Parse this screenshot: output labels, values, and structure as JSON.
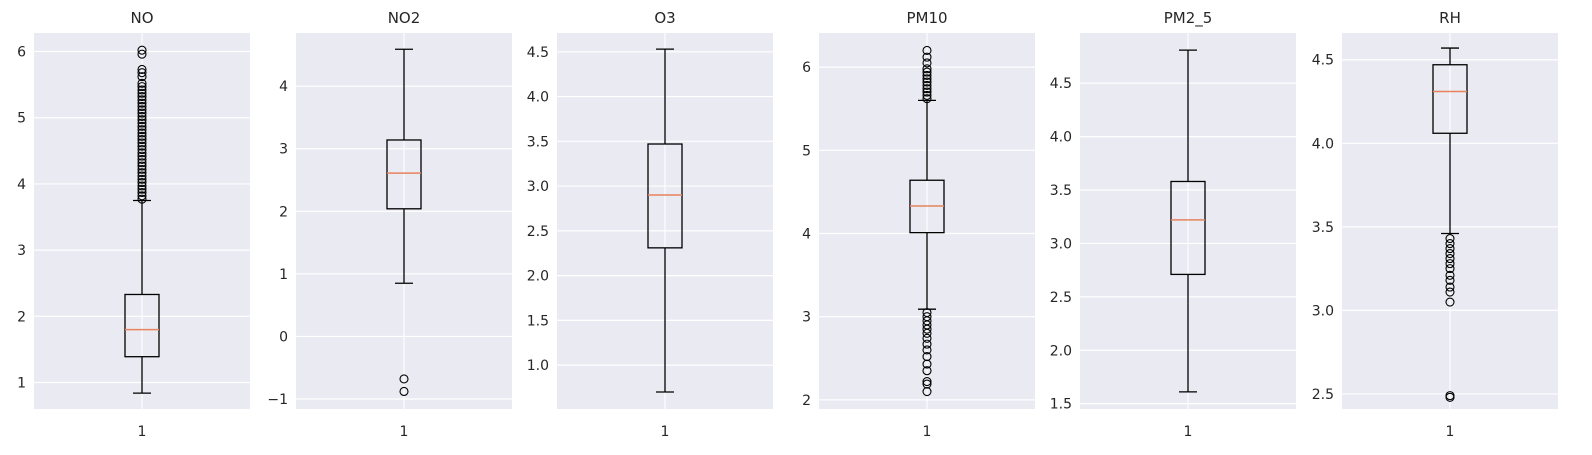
{
  "chart_data": [
    {
      "type": "box",
      "title": "NO",
      "categories": [
        "1"
      ],
      "ylim": [
        0.6,
        6.28
      ],
      "yticks": [
        1,
        2,
        3,
        4,
        5,
        6
      ],
      "box": {
        "whisker_low": 0.84,
        "q1": 1.39,
        "median": 1.8,
        "q3": 2.33,
        "whisker_high": 3.75
      },
      "outliers_high_dense": [
        3.77,
        5.55
      ],
      "outliers": [
        5.62,
        5.68,
        5.73,
        5.96,
        6.02
      ]
    },
    {
      "type": "box",
      "title": "NO2",
      "categories": [
        "1"
      ],
      "ylim": [
        -1.16,
        4.85
      ],
      "yticks": [
        -1,
        0,
        1,
        2,
        3,
        4
      ],
      "box": {
        "whisker_low": 0.85,
        "q1": 2.04,
        "median": 2.61,
        "q3": 3.14,
        "whisker_high": 4.59
      },
      "outliers": [
        -0.68,
        -0.88
      ]
    },
    {
      "type": "box",
      "title": "O3",
      "categories": [
        "1"
      ],
      "ylim": [
        0.51,
        4.71
      ],
      "yticks": [
        1.0,
        1.5,
        2.0,
        2.5,
        3.0,
        3.5,
        4.0,
        4.5
      ],
      "box": {
        "whisker_low": 0.7,
        "q1": 2.31,
        "median": 2.9,
        "q3": 3.47,
        "whisker_high": 4.53
      },
      "outliers": []
    },
    {
      "type": "box",
      "title": "PM10",
      "categories": [
        "1"
      ],
      "ylim": [
        1.89,
        6.41
      ],
      "yticks": [
        2,
        3,
        4,
        5,
        6
      ],
      "box": {
        "whisker_low": 3.09,
        "q1": 4.01,
        "median": 4.33,
        "q3": 4.64,
        "whisker_high": 5.6
      },
      "outliers": [
        5.62,
        5.66,
        5.7,
        5.74,
        5.78,
        5.82,
        5.86,
        5.9,
        5.94,
        5.98,
        6.05,
        6.12,
        6.2,
        3.05,
        3.0,
        2.95,
        2.9,
        2.85,
        2.8,
        2.74,
        2.67,
        2.6,
        2.52,
        2.43,
        2.35,
        2.22,
        2.19,
        2.1
      ]
    },
    {
      "type": "box",
      "title": "PM2_5",
      "categories": [
        "1"
      ],
      "ylim": [
        1.45,
        4.97
      ],
      "yticks": [
        1.5,
        2.0,
        2.5,
        3.0,
        3.5,
        4.0,
        4.5
      ],
      "box": {
        "whisker_low": 1.61,
        "q1": 2.71,
        "median": 3.22,
        "q3": 3.58,
        "whisker_high": 4.81
      },
      "outliers": []
    },
    {
      "type": "box",
      "title": "RH",
      "categories": [
        "1"
      ],
      "ylim": [
        2.41,
        4.66
      ],
      "yticks": [
        2.5,
        3.0,
        3.5,
        4.0,
        4.5
      ],
      "box": {
        "whisker_low": 3.46,
        "q1": 4.06,
        "median": 4.31,
        "q3": 4.47,
        "whisker_high": 4.57
      },
      "outliers": [
        3.43,
        3.4,
        3.37,
        3.34,
        3.31,
        3.28,
        3.25,
        3.21,
        3.18,
        3.14,
        3.11,
        3.05,
        2.49,
        2.48
      ]
    }
  ],
  "style": {
    "plot_background": "#eaeaf2",
    "grid_color": "#ffffff",
    "box_color": "#000000",
    "median_color": "#e8835c",
    "text_color": "#262626"
  }
}
